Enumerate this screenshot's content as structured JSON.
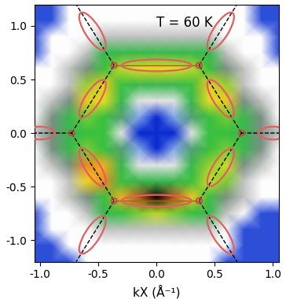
{
  "chart_data": {
    "type": "heatmap",
    "annotation": "T = 60 K",
    "x_label": "kX (Å⁻¹)",
    "xlim": [
      -1.05,
      1.05
    ],
    "ylim": [
      -1.2,
      1.2
    ],
    "xticks": [
      -1.0,
      -0.5,
      0.0,
      0.5,
      1.0
    ],
    "yticks": [
      -1.0,
      -0.5,
      0.0,
      0.5,
      1.0
    ],
    "heatmap": {
      "x": [
        -1.05,
        -0.9,
        -0.75,
        -0.6,
        -0.45,
        -0.3,
        -0.15,
        0.0,
        0.15,
        0.3,
        0.45,
        0.6,
        0.75,
        0.9,
        1.05
      ],
      "y": [
        1.2,
        1.05,
        0.9,
        0.75,
        0.6,
        0.45,
        0.3,
        0.15,
        0.0,
        -0.15,
        -0.3,
        -0.45,
        -0.6,
        -0.75,
        -0.9,
        -1.05,
        -1.2
      ],
      "cells": [
        [
          0.05,
          0.05,
          0.2,
          0.2,
          0.2,
          0.2,
          0.2,
          0.2,
          0.2,
          0.2,
          0.2,
          0.2,
          0.2,
          0.05,
          0.05
        ],
        [
          0.05,
          0.05,
          0.2,
          0.2,
          0.2,
          0.2,
          0.2,
          0.2,
          0.2,
          0.2,
          0.2,
          0.2,
          0.2,
          0.05,
          0.05
        ],
        [
          0.05,
          0.2,
          0.2,
          0.2,
          0.25,
          0.25,
          0.25,
          0.25,
          0.25,
          0.25,
          0.25,
          0.2,
          0.2,
          0.2,
          0.05
        ],
        [
          0.05,
          0.2,
          0.2,
          0.25,
          0.5,
          0.5,
          0.5,
          0.5,
          0.5,
          0.5,
          0.5,
          0.25,
          0.2,
          0.2,
          0.05
        ],
        [
          0.2,
          0.2,
          0.25,
          0.32,
          0.55,
          0.65,
          0.68,
          0.7,
          0.68,
          0.65,
          0.55,
          0.32,
          0.25,
          0.2,
          0.2
        ],
        [
          0.2,
          0.2,
          0.25,
          0.62,
          0.72,
          0.55,
          0.5,
          0.5,
          0.5,
          0.55,
          0.72,
          0.62,
          0.25,
          0.2,
          0.2
        ],
        [
          0.2,
          0.25,
          0.32,
          0.72,
          0.68,
          0.5,
          0.22,
          0.22,
          0.22,
          0.5,
          0.68,
          0.72,
          0.32,
          0.25,
          0.2
        ],
        [
          0.2,
          0.32,
          0.5,
          0.6,
          0.55,
          0.38,
          0.12,
          0.02,
          0.12,
          0.38,
          0.55,
          0.6,
          0.5,
          0.32,
          0.2
        ],
        [
          0.25,
          0.32,
          0.5,
          0.55,
          0.55,
          0.22,
          0.02,
          0.02,
          0.02,
          0.22,
          0.55,
          0.55,
          0.5,
          0.32,
          0.25
        ],
        [
          0.2,
          0.32,
          0.5,
          0.6,
          0.55,
          0.38,
          0.12,
          0.02,
          0.12,
          0.38,
          0.55,
          0.6,
          0.5,
          0.32,
          0.2
        ],
        [
          0.2,
          0.25,
          0.32,
          0.8,
          0.75,
          0.5,
          0.22,
          0.22,
          0.22,
          0.5,
          0.62,
          0.66,
          0.32,
          0.25,
          0.2
        ],
        [
          0.2,
          0.2,
          0.25,
          0.7,
          0.8,
          0.55,
          0.5,
          0.5,
          0.5,
          0.55,
          0.66,
          0.6,
          0.25,
          0.2,
          0.2
        ],
        [
          0.2,
          0.2,
          0.25,
          0.32,
          0.55,
          0.75,
          0.85,
          0.95,
          0.85,
          0.72,
          0.55,
          0.32,
          0.25,
          0.2,
          0.2
        ],
        [
          0.05,
          0.2,
          0.2,
          0.25,
          0.5,
          0.55,
          0.6,
          0.65,
          0.6,
          0.55,
          0.5,
          0.25,
          0.2,
          0.05,
          0.05
        ],
        [
          0.05,
          0.2,
          0.2,
          0.2,
          0.25,
          0.25,
          0.25,
          0.25,
          0.25,
          0.25,
          0.25,
          0.2,
          0.05,
          0.05,
          0.05
        ],
        [
          0.05,
          0.05,
          0.2,
          0.2,
          0.2,
          0.2,
          0.2,
          0.2,
          0.2,
          0.2,
          0.2,
          0.2,
          0.05,
          0.05,
          0.05
        ],
        [
          0.05,
          0.05,
          0.05,
          0.2,
          0.2,
          0.2,
          0.2,
          0.2,
          0.2,
          0.2,
          0.2,
          0.05,
          0.05,
          0.05,
          0.05
        ]
      ]
    },
    "series": [
      {
        "type": "line",
        "line_style": "dashed",
        "color": "#000000",
        "x": [
          0.73,
          0.365,
          null,
          0.73,
          0.365,
          null,
          -0.73,
          -0.365,
          null,
          -0.73,
          -0.365,
          null,
          0.365,
          0.69,
          null,
          0.365,
          0.69,
          null,
          -0.365,
          -0.69,
          null,
          -0.365,
          -0.69,
          null,
          0.73,
          1.05,
          null,
          -0.73,
          -1.05
        ],
        "y": [
          0.0,
          0.632,
          null,
          0.0,
          -0.632,
          null,
          0.0,
          0.632,
          null,
          0.0,
          -0.632,
          null,
          0.632,
          1.2,
          null,
          -0.632,
          -1.2,
          null,
          0.632,
          1.2,
          null,
          -0.632,
          -1.2,
          null,
          0.0,
          0.0,
          null,
          0.0,
          0.0
        ]
      },
      {
        "type": "line",
        "line_style": "solid",
        "color": "#d94040",
        "x": [
          -0.365,
          0.365,
          null,
          -0.365,
          0.365
        ],
        "y": [
          0.632,
          0.632,
          null,
          -0.632,
          -0.632
        ]
      }
    ],
    "ellipses": {
      "color": "#e06060",
      "items": [
        {
          "x": [
            -0.3,
            0.3
          ],
          "y": [
            0.632,
            0.632
          ],
          "minor": 0.11
        },
        {
          "x": [
            -0.3,
            0.3
          ],
          "y": [
            -0.632,
            -0.632
          ],
          "minor": 0.11
        },
        {
          "x": [
            0.65,
            0.45
          ],
          "y": [
            0.147,
            0.493
          ],
          "minor": 0.13
        },
        {
          "x": [
            -0.65,
            -0.45
          ],
          "y": [
            0.147,
            0.493
          ],
          "minor": 0.13
        },
        {
          "x": [
            0.65,
            0.45
          ],
          "y": [
            -0.147,
            -0.493
          ],
          "minor": 0.13
        },
        {
          "x": [
            -0.65,
            -0.45
          ],
          "y": [
            -0.147,
            -0.493
          ],
          "minor": 0.13
        },
        {
          "x": [
            0.45,
            0.65
          ],
          "y": [
            0.777,
            1.123
          ],
          "minor": 0.13
        },
        {
          "x": [
            -0.45,
            -0.65
          ],
          "y": [
            0.777,
            1.123
          ],
          "minor": 0.13
        },
        {
          "x": [
            0.45,
            0.65
          ],
          "y": [
            -0.777,
            -1.123
          ],
          "minor": 0.13
        },
        {
          "x": [
            -0.45,
            -0.65
          ],
          "y": [
            -0.777,
            -1.123
          ],
          "minor": 0.13
        },
        {
          "x": [
            0.88,
            1.12
          ],
          "y": [
            0.0,
            0.0
          ],
          "minor": 0.12
        },
        {
          "x": [
            -0.88,
            -1.12
          ],
          "y": [
            0.0,
            0.0
          ],
          "minor": 0.12
        }
      ]
    },
    "circles": {
      "color": "#d94040",
      "items": [
        {
          "x": 0.73,
          "y": 0.0,
          "r": 0.025
        },
        {
          "x": -0.73,
          "y": 0.0,
          "r": 0.025
        },
        {
          "x": 0.365,
          "y": 0.632,
          "r": 0.025
        },
        {
          "x": -0.365,
          "y": 0.632,
          "r": 0.025
        },
        {
          "x": 0.365,
          "y": -0.632,
          "r": 0.025
        },
        {
          "x": -0.365,
          "y": -0.632,
          "r": 0.025
        }
      ]
    }
  }
}
